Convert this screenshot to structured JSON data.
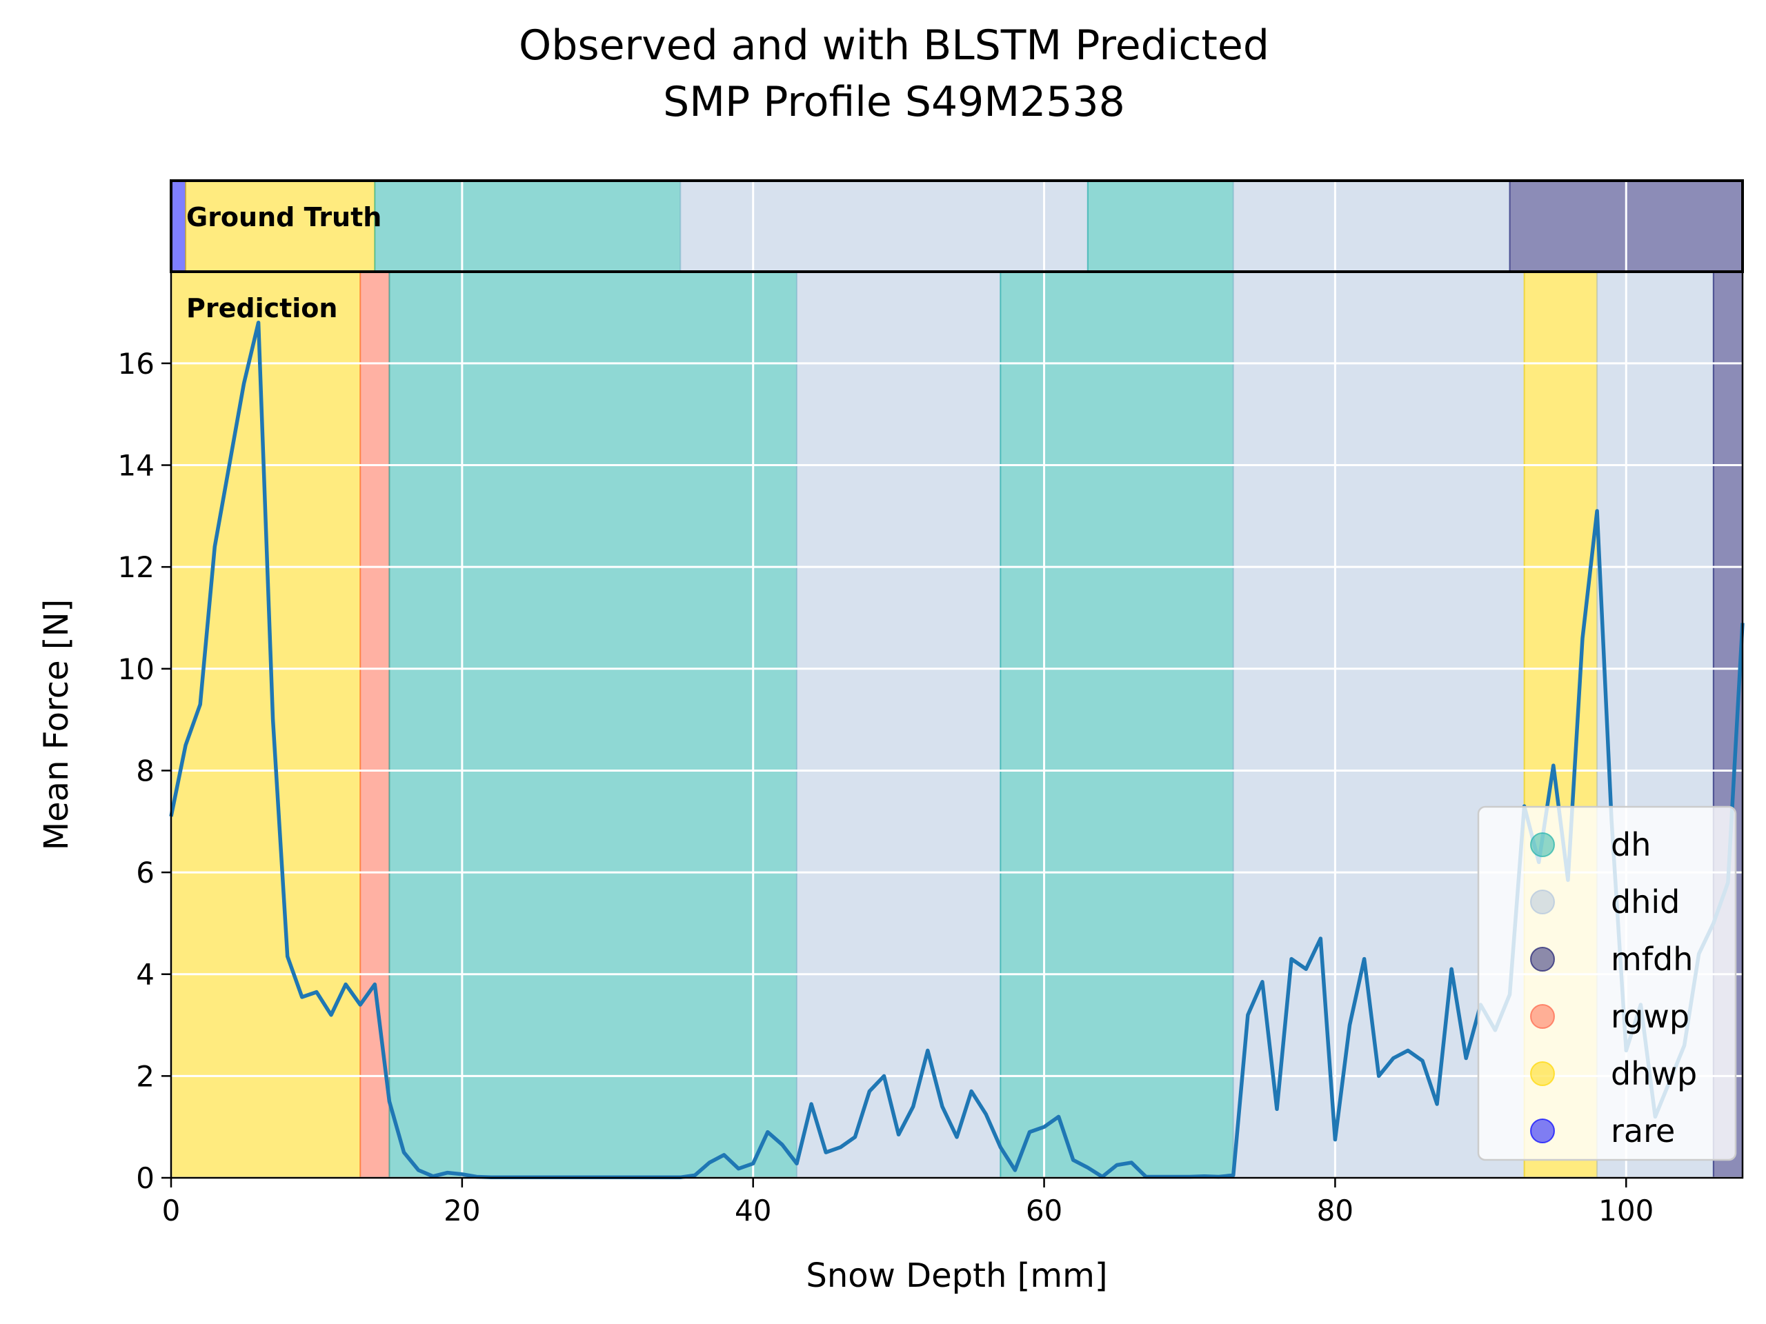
{
  "chart_data": {
    "type": "line",
    "title": "Observed and with BLSTM Predicted",
    "subtitle": "SMP Profile S49M2538",
    "xlabel": "Snow Depth [mm]",
    "ylabel": "Mean Force [N]",
    "xlim": [
      0,
      108
    ],
    "ylim": [
      0,
      17.8
    ],
    "xticks": [
      0,
      20,
      40,
      60,
      80,
      100
    ],
    "yticks": [
      0,
      2,
      4,
      6,
      8,
      10,
      12,
      14,
      16
    ],
    "grid": true,
    "legend_position": "lower-right",
    "annotations": {
      "ground_truth": "Ground Truth",
      "prediction": "Prediction"
    },
    "classes": [
      {
        "name": "dh",
        "color": "#20b2aa"
      },
      {
        "name": "dhid",
        "color": "#b0c4de"
      },
      {
        "name": "mfdh",
        "color": "#191970"
      },
      {
        "name": "rgwp",
        "color": "#ff6347"
      },
      {
        "name": "dhwp",
        "color": "#ffd700"
      },
      {
        "name": "rare",
        "color": "#0000ff"
      }
    ],
    "ground_truth_segments": [
      {
        "label": "rare",
        "start": 0,
        "end": 1
      },
      {
        "label": "dhwp",
        "start": 1,
        "end": 14
      },
      {
        "label": "dh",
        "start": 14,
        "end": 35
      },
      {
        "label": "dhid",
        "start": 35,
        "end": 63
      },
      {
        "label": "dh",
        "start": 63,
        "end": 73
      },
      {
        "label": "dhid",
        "start": 73,
        "end": 92
      },
      {
        "label": "mfdh",
        "start": 92,
        "end": 108
      }
    ],
    "prediction_segments": [
      {
        "label": "dhwp",
        "start": 0,
        "end": 13
      },
      {
        "label": "rgwp",
        "start": 13,
        "end": 15
      },
      {
        "label": "dh",
        "start": 15,
        "end": 43
      },
      {
        "label": "dhid",
        "start": 43,
        "end": 57
      },
      {
        "label": "dh",
        "start": 57,
        "end": 73
      },
      {
        "label": "dhid",
        "start": 73,
        "end": 93
      },
      {
        "label": "dhwp",
        "start": 93,
        "end": 98
      },
      {
        "label": "dhid",
        "start": 98,
        "end": 106
      },
      {
        "label": "mfdh",
        "start": 106,
        "end": 108
      }
    ],
    "series": [
      {
        "name": "mean force",
        "color": "#1f77b4",
        "x": [
          0,
          1,
          2,
          3,
          4,
          5,
          6,
          7,
          8,
          9,
          10,
          11,
          12,
          13,
          14,
          15,
          16,
          17,
          18,
          19,
          20,
          21,
          22,
          23,
          24,
          25,
          26,
          27,
          28,
          29,
          30,
          31,
          32,
          33,
          34,
          35,
          36,
          37,
          38,
          39,
          40,
          41,
          42,
          43,
          44,
          45,
          46,
          47,
          48,
          49,
          50,
          51,
          52,
          53,
          54,
          55,
          56,
          57,
          58,
          59,
          60,
          61,
          62,
          63,
          64,
          65,
          66,
          67,
          68,
          69,
          70,
          71,
          72,
          73,
          74,
          75,
          76,
          77,
          78,
          79,
          80,
          81,
          82,
          83,
          84,
          85,
          86,
          87,
          88,
          89,
          90,
          91,
          92,
          93,
          94,
          95,
          96,
          97,
          98,
          99,
          100,
          101,
          102,
          103,
          104,
          105,
          106,
          107,
          108
        ],
        "values": [
          7.1,
          8.5,
          9.3,
          12.4,
          14.0,
          15.6,
          16.8,
          9.0,
          4.35,
          3.55,
          3.65,
          3.2,
          3.8,
          3.4,
          3.8,
          1.5,
          0.5,
          0.15,
          0.03,
          0.1,
          0.07,
          0.02,
          0.01,
          0.01,
          0.01,
          0.01,
          0.01,
          0.01,
          0.01,
          0.01,
          0.01,
          0.01,
          0.01,
          0.01,
          0.01,
          0.01,
          0.05,
          0.3,
          0.45,
          0.18,
          0.28,
          0.9,
          0.65,
          0.28,
          1.45,
          0.5,
          0.6,
          0.8,
          1.7,
          2.0,
          0.85,
          1.4,
          2.5,
          1.4,
          0.8,
          1.7,
          1.25,
          0.6,
          0.15,
          0.9,
          1.0,
          1.2,
          0.35,
          0.2,
          0.02,
          0.25,
          0.3,
          0.02,
          0.02,
          0.02,
          0.02,
          0.03,
          0.02,
          0.05,
          3.2,
          3.85,
          1.35,
          4.3,
          4.1,
          4.7,
          0.75,
          3.0,
          4.3,
          2.0,
          2.35,
          2.5,
          2.3,
          1.45,
          4.1,
          2.35,
          3.4,
          2.9,
          3.6,
          7.3,
          6.2,
          8.1,
          5.85,
          10.6,
          13.1,
          7.0,
          2.5,
          3.4,
          1.2,
          1.9,
          2.6,
          4.4,
          5.0,
          5.8,
          10.9
        ]
      }
    ]
  }
}
